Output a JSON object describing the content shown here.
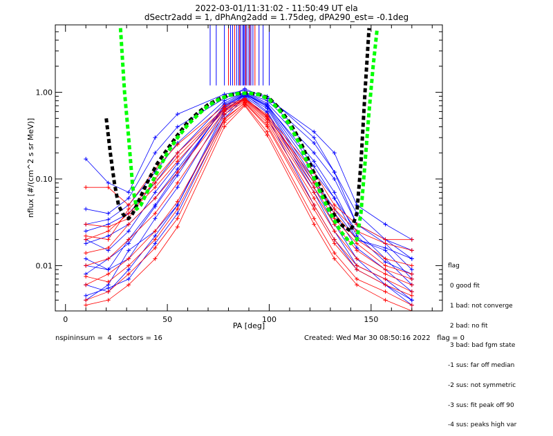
{
  "chart_data": {
    "type": "line",
    "title": "2022-03-01/11:31:02 - 11:50:49 UT ela",
    "subtitle": "dSectr2add = 1, dPhAng2add = 1.75deg, dPA290_est=  -0.1deg",
    "xlabel": "PA [deg]",
    "ylabel": "nflux [#/(cm^2 s sr MeV)]",
    "xlim": [
      -5,
      185
    ],
    "ylim": [
      0.003,
      6.0
    ],
    "yscale": "log",
    "xticks": [
      "0",
      "50",
      "100",
      "150"
    ],
    "yticks": [
      "0.01",
      "0.10",
      "1.00"
    ],
    "series_colors": {
      "blue": "#0000ff",
      "red": "#ff0000",
      "black": "#000000",
      "green": "#00ff00"
    },
    "bundle_x": [
      10,
      21,
      31,
      44,
      55,
      78,
      88,
      99,
      122,
      132,
      143,
      157,
      170
    ],
    "series": [
      {
        "color": "blue",
        "values": [
          0.008,
          0.012,
          0.018,
          0.048,
          0.11,
          0.72,
          0.98,
          0.72,
          0.14,
          0.06,
          0.025,
          0.012,
          0.006
        ]
      },
      {
        "color": "blue",
        "values": [
          0.03,
          0.034,
          0.05,
          0.12,
          0.26,
          0.8,
          1.0,
          0.8,
          0.26,
          0.12,
          0.04,
          0.02,
          0.012
        ]
      },
      {
        "color": "blue",
        "values": [
          0.17,
          0.09,
          0.07,
          0.3,
          0.56,
          0.95,
          1.05,
          0.9,
          0.3,
          0.12,
          0.03,
          0.018,
          0.009
        ]
      },
      {
        "color": "blue",
        "values": [
          0.004,
          0.006,
          0.015,
          0.025,
          0.05,
          0.6,
          0.95,
          0.6,
          0.08,
          0.03,
          0.012,
          0.006,
          0.004
        ]
      },
      {
        "color": "blue",
        "values": [
          0.045,
          0.04,
          0.06,
          0.2,
          0.4,
          0.85,
          1.1,
          0.85,
          0.35,
          0.2,
          0.05,
          0.03,
          0.02
        ]
      },
      {
        "color": "blue",
        "values": [
          0.02,
          0.015,
          0.025,
          0.07,
          0.15,
          0.7,
          0.95,
          0.7,
          0.12,
          0.06,
          0.02,
          0.015,
          0.007
        ]
      },
      {
        "color": "blue",
        "values": [
          0.012,
          0.009,
          0.012,
          0.035,
          0.08,
          0.62,
          0.92,
          0.65,
          0.09,
          0.04,
          0.016,
          0.009,
          0.005
        ]
      },
      {
        "color": "blue",
        "values": [
          0.006,
          0.005,
          0.009,
          0.022,
          0.05,
          0.55,
          0.9,
          0.58,
          0.07,
          0.025,
          0.01,
          0.007,
          0.004
        ]
      },
      {
        "color": "blue",
        "values": [
          0.025,
          0.03,
          0.04,
          0.09,
          0.2,
          0.75,
          1.0,
          0.75,
          0.2,
          0.1,
          0.03,
          0.02,
          0.015
        ]
      },
      {
        "color": "blue",
        "values": [
          0.01,
          0.009,
          0.02,
          0.05,
          0.12,
          0.68,
          0.97,
          0.7,
          0.16,
          0.07,
          0.022,
          0.011,
          0.008
        ]
      },
      {
        "color": "blue",
        "values": [
          0.0045,
          0.0055,
          0.007,
          0.018,
          0.04,
          0.5,
          0.88,
          0.52,
          0.05,
          0.02,
          0.009,
          0.006,
          0.0035
        ]
      },
      {
        "color": "blue",
        "values": [
          0.018,
          0.022,
          0.03,
          0.06,
          0.13,
          0.66,
          0.95,
          0.68,
          0.1,
          0.045,
          0.02,
          0.016,
          0.012
        ]
      },
      {
        "color": "red",
        "values": [
          0.08,
          0.08,
          0.05,
          0.13,
          0.25,
          0.7,
          0.85,
          0.55,
          0.12,
          0.05,
          0.03,
          0.02,
          0.02
        ]
      },
      {
        "color": "red",
        "values": [
          0.02,
          0.025,
          0.04,
          0.08,
          0.16,
          0.62,
          0.82,
          0.5,
          0.08,
          0.035,
          0.018,
          0.01,
          0.008
        ]
      },
      {
        "color": "red",
        "values": [
          0.01,
          0.012,
          0.02,
          0.04,
          0.09,
          0.56,
          0.78,
          0.45,
          0.06,
          0.025,
          0.012,
          0.008,
          0.006
        ]
      },
      {
        "color": "red",
        "values": [
          0.006,
          0.008,
          0.012,
          0.025,
          0.055,
          0.5,
          0.75,
          0.4,
          0.045,
          0.018,
          0.009,
          0.006,
          0.0045
        ]
      },
      {
        "color": "red",
        "values": [
          0.004,
          0.005,
          0.008,
          0.016,
          0.035,
          0.45,
          0.72,
          0.35,
          0.035,
          0.014,
          0.007,
          0.005,
          0.0035
        ]
      },
      {
        "color": "red",
        "values": [
          0.03,
          0.028,
          0.035,
          0.1,
          0.2,
          0.66,
          0.84,
          0.52,
          0.1,
          0.04,
          0.02,
          0.012,
          0.01
        ]
      },
      {
        "color": "red",
        "values": [
          0.014,
          0.016,
          0.03,
          0.06,
          0.12,
          0.6,
          0.8,
          0.48,
          0.07,
          0.03,
          0.015,
          0.009,
          0.007
        ]
      },
      {
        "color": "red",
        "values": [
          0.0075,
          0.0065,
          0.01,
          0.02,
          0.045,
          0.48,
          0.76,
          0.42,
          0.05,
          0.02,
          0.01,
          0.007,
          0.005
        ]
      },
      {
        "color": "red",
        "values": [
          0.0035,
          0.004,
          0.006,
          0.012,
          0.028,
          0.4,
          0.7,
          0.32,
          0.03,
          0.012,
          0.006,
          0.004,
          0.003
        ]
      },
      {
        "color": "red",
        "values": [
          0.022,
          0.02,
          0.045,
          0.09,
          0.18,
          0.64,
          0.83,
          0.53,
          0.09,
          0.045,
          0.025,
          0.018,
          0.015
        ]
      }
    ],
    "vertical_markers": {
      "blue_x": [
        71,
        74,
        78,
        81,
        82,
        84,
        85,
        86,
        87,
        87.5,
        88,
        89,
        90,
        91,
        92,
        95,
        97,
        100
      ],
      "red_x": [
        80,
        83,
        85.5,
        88.5,
        90.5,
        93
      ],
      "ymin": 1.2,
      "ymax": 6.0
    },
    "fit_curves": [
      {
        "color": "black",
        "style": "dashed",
        "x": [
          20,
          22,
          24,
          26,
          28,
          30,
          31,
          33,
          35,
          40,
          45,
          50,
          55,
          60,
          65,
          70,
          75,
          80,
          85,
          90,
          95,
          100,
          105,
          110,
          115,
          120,
          125,
          130,
          135,
          140,
          143,
          145,
          147,
          149
        ],
        "values": [
          0.5,
          0.2,
          0.09,
          0.05,
          0.04,
          0.035,
          0.035,
          0.04,
          0.05,
          0.09,
          0.15,
          0.22,
          0.32,
          0.45,
          0.58,
          0.72,
          0.83,
          0.92,
          0.97,
          0.98,
          0.95,
          0.85,
          0.65,
          0.45,
          0.28,
          0.15,
          0.08,
          0.045,
          0.03,
          0.025,
          0.04,
          0.15,
          1.0,
          5.5
        ]
      },
      {
        "color": "green",
        "style": "dashed",
        "x": [
          27,
          29,
          31,
          33,
          35,
          37,
          40,
          45,
          50,
          55,
          60,
          65,
          70,
          75,
          80,
          85,
          90,
          95,
          100,
          105,
          110,
          115,
          120,
          125,
          130,
          135,
          140,
          143,
          145,
          147,
          149,
          151,
          153
        ],
        "values": [
          5.5,
          1.0,
          0.3,
          0.08,
          0.045,
          0.05,
          0.07,
          0.12,
          0.2,
          0.3,
          0.42,
          0.55,
          0.7,
          0.82,
          0.92,
          0.97,
          0.98,
          0.94,
          0.83,
          0.62,
          0.42,
          0.25,
          0.13,
          0.07,
          0.04,
          0.025,
          0.018,
          0.02,
          0.04,
          0.15,
          0.6,
          2.0,
          5.5
        ]
      }
    ]
  },
  "footer": {
    "left": "nspininsum =  4   sectors = 16",
    "right": "Created: Wed Mar 30 08:50:16 2022   flag = 0"
  },
  "legend": {
    "items": [
      "flag",
      " 0 good fit",
      " 1 bad: not converge",
      " 2 bad: no fit",
      " 3 bad: bad fgm state",
      "-1 sus: far off median",
      "-2 sus: not symmetric",
      "-3 sus: fit peak off 90",
      "-4 sus: peaks high var"
    ]
  }
}
